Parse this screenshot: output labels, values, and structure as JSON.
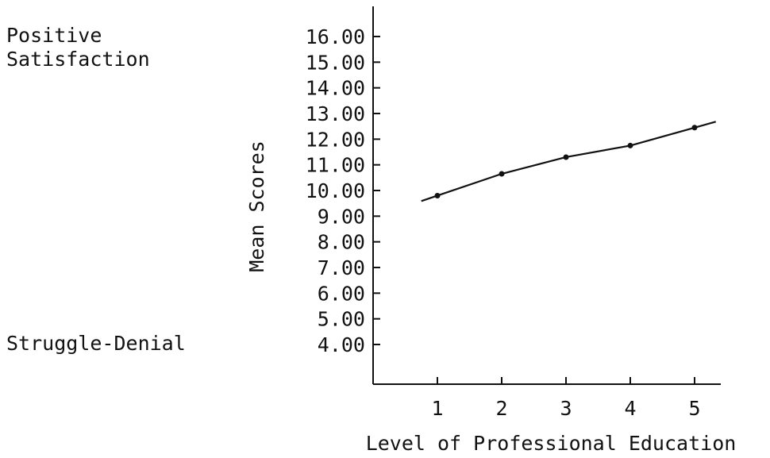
{
  "side_labels": {
    "positive_line1": "Positive",
    "positive_line2": "Satisfaction",
    "negative": "Struggle-Denial"
  },
  "chart_data": {
    "type": "line",
    "title": "",
    "xlabel": "Level of Professional Education",
    "ylabel": "Mean Scores",
    "x": [
      1,
      2,
      3,
      4,
      5
    ],
    "series": [
      {
        "values": [
          9.8,
          10.65,
          11.3,
          11.75,
          12.45
        ]
      }
    ],
    "xticks": [
      "1",
      "2",
      "3",
      "4",
      "5"
    ],
    "yticks": [
      "4.00",
      "5.00",
      "6.00",
      "7.00",
      "8.00",
      "9.00",
      "10.00",
      "11.00",
      "12.00",
      "13.00",
      "14.00",
      "15.00",
      "16.00"
    ],
    "ylim": [
      4,
      16
    ],
    "grid": false,
    "line_color": "#111111"
  }
}
